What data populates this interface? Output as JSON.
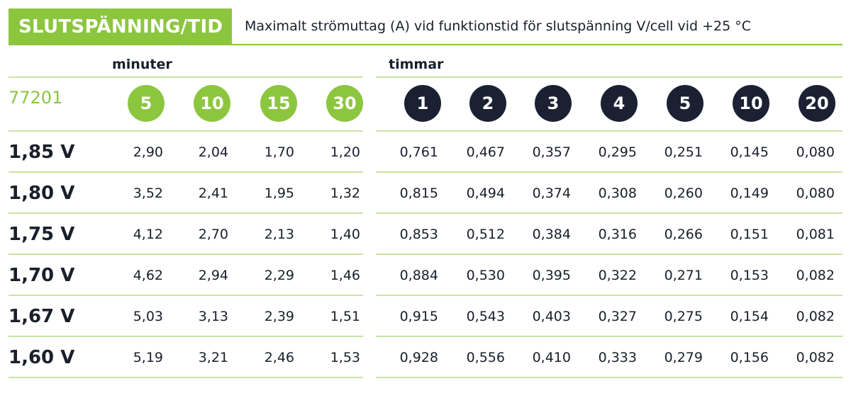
{
  "header": {
    "title": "SLUTSPÄNNING/TID",
    "description": "Maximalt strömuttag (A) vid funktionstid för slutspänning V/cell vid +25 °C"
  },
  "groups": {
    "minutes_label": "minuter",
    "hours_label": "timmar"
  },
  "product_code": "77201",
  "minute_columns": [
    "5",
    "10",
    "15",
    "30"
  ],
  "hour_columns": [
    "1",
    "2",
    "3",
    "4",
    "5",
    "10",
    "20"
  ],
  "colors": {
    "accent_green": "#8cc63f",
    "dark_navy": "#1b2133"
  },
  "rows": [
    {
      "label": "1,85 V",
      "minutes": [
        "2,90",
        "2,04",
        "1,70",
        "1,20"
      ],
      "hours": [
        "0,761",
        "0,467",
        "0,357",
        "0,295",
        "0,251",
        "0,145",
        "0,080"
      ]
    },
    {
      "label": "1,80 V",
      "minutes": [
        "3,52",
        "2,41",
        "1,95",
        "1,32"
      ],
      "hours": [
        "0,815",
        "0,494",
        "0,374",
        "0,308",
        "0,260",
        "0,149",
        "0,080"
      ]
    },
    {
      "label": "1,75 V",
      "minutes": [
        "4,12",
        "2,70",
        "2,13",
        "1,40"
      ],
      "hours": [
        "0,853",
        "0,512",
        "0,384",
        "0,316",
        "0,266",
        "0,151",
        "0,081"
      ]
    },
    {
      "label": "1,70 V",
      "minutes": [
        "4,62",
        "2,94",
        "2,29",
        "1,46"
      ],
      "hours": [
        "0,884",
        "0,530",
        "0,395",
        "0,322",
        "0,271",
        "0,153",
        "0,082"
      ]
    },
    {
      "label": "1,67 V",
      "minutes": [
        "5,03",
        "3,13",
        "2,39",
        "1,51"
      ],
      "hours": [
        "0,915",
        "0,543",
        "0,403",
        "0,327",
        "0,275",
        "0,154",
        "0,082"
      ]
    },
    {
      "label": "1,60 V",
      "minutes": [
        "5,19",
        "3,21",
        "2,46",
        "1,53"
      ],
      "hours": [
        "0,928",
        "0,556",
        "0,410",
        "0,333",
        "0,279",
        "0,156",
        "0,082"
      ]
    }
  ]
}
